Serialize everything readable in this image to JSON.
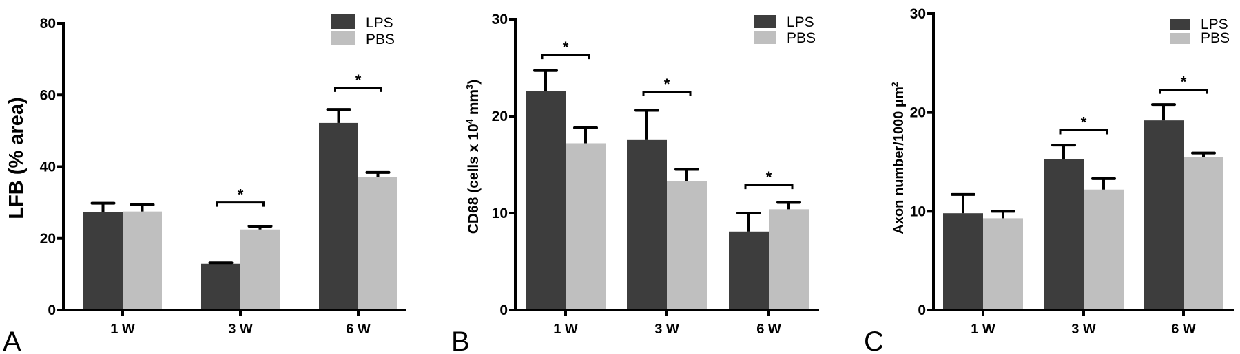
{
  "colors": {
    "LPS": "#3d3d3d",
    "PBS": "#bfbfbf",
    "axis": "#000000"
  },
  "chart_data": [
    {
      "type": "bar",
      "panel_letter": "A",
      "title": "",
      "ylabel": "LFB (% area)",
      "ylabel_parts": [
        {
          "text": "LFB (% area)"
        }
      ],
      "xlabel": "",
      "categories": [
        "1 W",
        "3 W",
        "6 W"
      ],
      "yticks": [
        "0",
        "20",
        "40",
        "60",
        "80"
      ],
      "ytick_values": [
        0,
        20,
        40,
        60,
        80
      ],
      "ylim": [
        0,
        80
      ],
      "legend": {
        "entries": [
          "LPS",
          "PBS"
        ],
        "placement": "top-right"
      },
      "series": [
        {
          "name": "LPS",
          "values": [
            27.4,
            12.9,
            52.2
          ],
          "error": [
            2.4,
            0.3,
            3.8
          ]
        },
        {
          "name": "PBS",
          "values": [
            27.5,
            22.5,
            37.2
          ],
          "error": [
            1.9,
            0.9,
            1.2
          ]
        }
      ],
      "significance": [
        {
          "category": "3 W",
          "label": "*",
          "level": 30
        },
        {
          "category": "6 W",
          "label": "*",
          "level": 62
        }
      ],
      "grid": false
    },
    {
      "type": "bar",
      "panel_letter": "B",
      "title": "",
      "ylabel": "CD68 (cells x 10⁴ mm³)",
      "ylabel_parts": [
        {
          "text": "CD68 (cells x 10"
        },
        {
          "text": "4",
          "sup": true
        },
        {
          "text": " mm"
        },
        {
          "text": "3",
          "sup": true
        },
        {
          "text": ")"
        }
      ],
      "xlabel": "",
      "categories": [
        "1 W",
        "3 W",
        "6 W"
      ],
      "yticks": [
        "0",
        "10",
        "20",
        "30"
      ],
      "ytick_values": [
        0,
        10,
        20,
        30
      ],
      "ylim": [
        0,
        30
      ],
      "legend": {
        "entries": [
          "LPS",
          "PBS"
        ],
        "placement": "top-right"
      },
      "series": [
        {
          "name": "LPS",
          "values": [
            22.6,
            17.6,
            8.1
          ],
          "error": [
            2.1,
            3.0,
            1.9
          ]
        },
        {
          "name": "PBS",
          "values": [
            17.2,
            13.3,
            10.4
          ],
          "error": [
            1.6,
            1.2,
            0.7
          ]
        }
      ],
      "significance": [
        {
          "category": "1 W",
          "label": "*",
          "level": 26.3
        },
        {
          "category": "3 W",
          "label": "*",
          "level": 22.5
        },
        {
          "category": "6 W",
          "label": "*",
          "level": 12.9
        }
      ],
      "grid": false
    },
    {
      "type": "bar",
      "panel_letter": "C",
      "title": "",
      "ylabel": "Axon number/1000 μm²",
      "ylabel_parts": [
        {
          "text": "Axon number/1000 μm"
        },
        {
          "text": "2",
          "sup": true
        }
      ],
      "xlabel": "",
      "categories": [
        "1 W",
        "3 W",
        "6 W"
      ],
      "yticks": [
        "0",
        "10",
        "20",
        "30"
      ],
      "ytick_values": [
        0,
        10,
        20,
        30
      ],
      "ylim": [
        0,
        30
      ],
      "legend": {
        "entries": [
          "LPS",
          "PBS"
        ],
        "placement": "top-right"
      },
      "series": [
        {
          "name": "LPS",
          "values": [
            9.8,
            15.3,
            19.2
          ],
          "error": [
            1.9,
            1.4,
            1.6
          ]
        },
        {
          "name": "PBS",
          "values": [
            9.3,
            12.2,
            15.5
          ],
          "error": [
            0.7,
            1.1,
            0.4
          ]
        }
      ],
      "significance": [
        {
          "category": "3 W",
          "label": "*",
          "level": 18.2
        },
        {
          "category": "6 W",
          "label": "*",
          "level": 22.3
        }
      ],
      "grid": false
    }
  ]
}
